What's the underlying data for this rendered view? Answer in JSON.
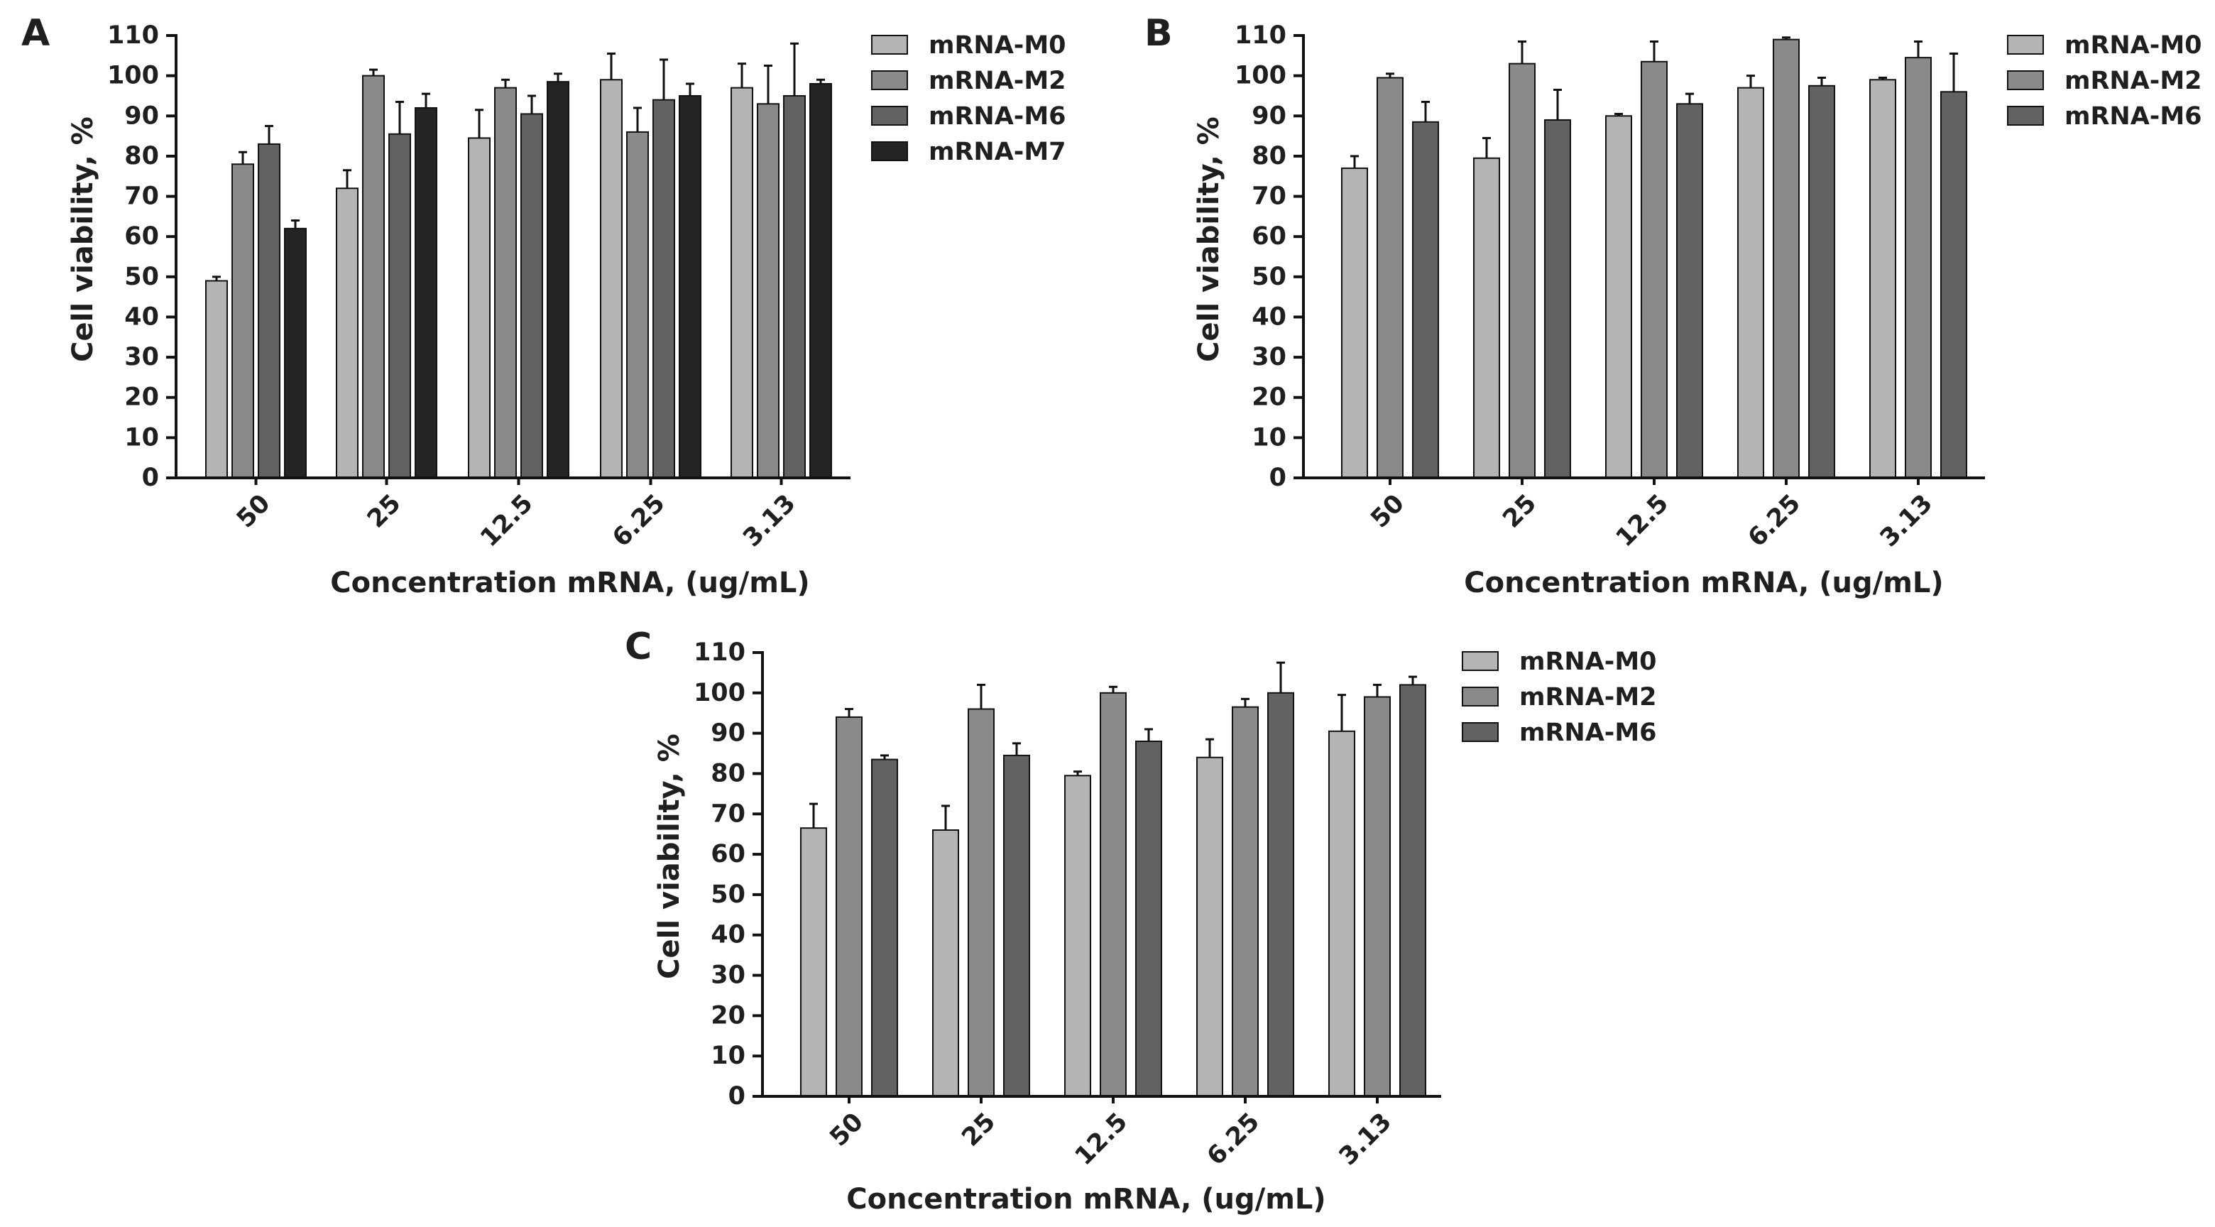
{
  "colors": {
    "mRNA-M0": "#b4b4b4",
    "mRNA-M2": "#8a8a8a",
    "mRNA-M6": "#626262",
    "mRNA-M7": "#242424",
    "axis": "#111111"
  },
  "chart_data": [
    {
      "panel": "A",
      "type": "bar",
      "title": "",
      "xlabel": "Concentration mRNA, (ug/mL)",
      "ylabel": "Cell viability, %",
      "ylim": [
        0,
        110
      ],
      "yticks": [
        "0",
        "10",
        "20",
        "30",
        "40",
        "50",
        "60",
        "70",
        "80",
        "90",
        "100",
        "110"
      ],
      "categories": [
        "50",
        "25",
        "12.5",
        "6.25",
        "3.13"
      ],
      "legend_position": "right",
      "series": [
        {
          "name": "mRNA-M0",
          "values": [
            49,
            72,
            84.5,
            99,
            97
          ],
          "errors": [
            1,
            4.5,
            7,
            6.5,
            6
          ]
        },
        {
          "name": "mRNA-M2",
          "values": [
            78,
            100,
            97,
            86,
            93
          ],
          "errors": [
            3,
            1.5,
            2,
            6,
            9.5
          ]
        },
        {
          "name": "mRNA-M6",
          "values": [
            83,
            85.5,
            90.5,
            94,
            95
          ],
          "errors": [
            4.5,
            8,
            4.5,
            10,
            13
          ]
        },
        {
          "name": "mRNA-M7",
          "values": [
            62,
            92,
            98.5,
            95,
            98
          ],
          "errors": [
            2,
            3.5,
            2,
            3,
            1
          ]
        }
      ]
    },
    {
      "panel": "B",
      "type": "bar",
      "title": "",
      "xlabel": "Concentration mRNA, (ug/mL)",
      "ylabel": "Cell viability, %",
      "ylim": [
        0,
        110
      ],
      "yticks": [
        "0",
        "10",
        "20",
        "30",
        "40",
        "50",
        "60",
        "70",
        "80",
        "90",
        "100",
        "110"
      ],
      "categories": [
        "50",
        "25",
        "12.5",
        "6.25",
        "3.13"
      ],
      "legend_position": "right",
      "series": [
        {
          "name": "mRNA-M0",
          "values": [
            77,
            79.5,
            90,
            97,
            99
          ],
          "errors": [
            3,
            5,
            0.5,
            3,
            0.5
          ]
        },
        {
          "name": "mRNA-M2",
          "values": [
            99.5,
            103,
            103.5,
            109,
            104.5
          ],
          "errors": [
            1,
            5.5,
            5,
            0.5,
            4
          ]
        },
        {
          "name": "mRNA-M6",
          "values": [
            88.5,
            89,
            93,
            97.5,
            96
          ],
          "errors": [
            5,
            7.5,
            2.5,
            2,
            9.5
          ]
        }
      ]
    },
    {
      "panel": "C",
      "type": "bar",
      "title": "",
      "xlabel": "Concentration mRNA, (ug/mL)",
      "ylabel": "Cell viability, %",
      "ylim": [
        0,
        110
      ],
      "yticks": [
        "0",
        "10",
        "20",
        "30",
        "40",
        "50",
        "60",
        "70",
        "80",
        "90",
        "100",
        "110"
      ],
      "categories": [
        "50",
        "25",
        "12.5",
        "6.25",
        "3.13"
      ],
      "legend_position": "right",
      "series": [
        {
          "name": "mRNA-M0",
          "values": [
            66.5,
            66,
            79.5,
            84,
            90.5
          ],
          "errors": [
            6,
            6,
            1,
            4.5,
            9
          ]
        },
        {
          "name": "mRNA-M2",
          "values": [
            94,
            96,
            100,
            96.5,
            99
          ],
          "errors": [
            2,
            6,
            1.5,
            2,
            3
          ]
        },
        {
          "name": "mRNA-M6",
          "values": [
            83.5,
            84.5,
            88,
            100,
            102
          ],
          "errors": [
            1,
            3,
            3,
            7.5,
            2
          ]
        }
      ]
    }
  ]
}
